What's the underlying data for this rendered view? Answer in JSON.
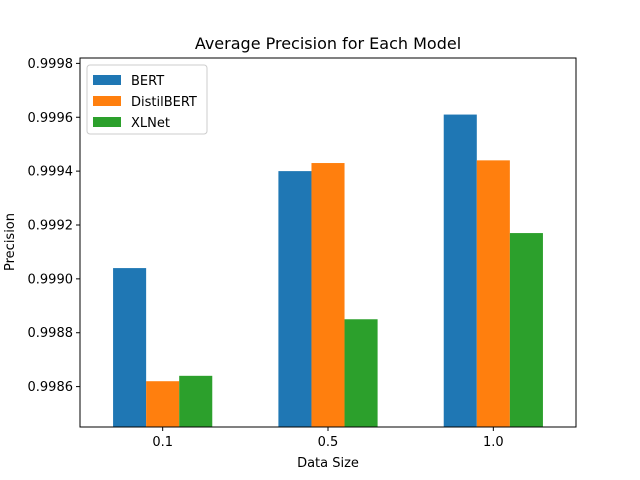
{
  "chart_data": {
    "type": "bar",
    "title": "Average Precision for Each Model",
    "xlabel": "Data Size",
    "ylabel": "Precision",
    "categories": [
      "0.1",
      "0.5",
      "1.0"
    ],
    "series": [
      {
        "name": "BERT",
        "color": "#1f77b4",
        "values": [
          0.99904,
          0.9994,
          0.99961
        ]
      },
      {
        "name": "DistilBERT",
        "color": "#ff7f0e",
        "values": [
          0.99862,
          0.99943,
          0.99944
        ]
      },
      {
        "name": "XLNet",
        "color": "#2ca02c",
        "values": [
          0.99864,
          0.99885,
          0.99917
        ]
      }
    ],
    "ylim": [
      0.99845,
      0.99982
    ],
    "yticks": [
      "0.9986",
      "0.9988",
      "0.9990",
      "0.9992",
      "0.9994",
      "0.9996",
      "0.9998"
    ],
    "legend": "top-left",
    "grid": false
  }
}
